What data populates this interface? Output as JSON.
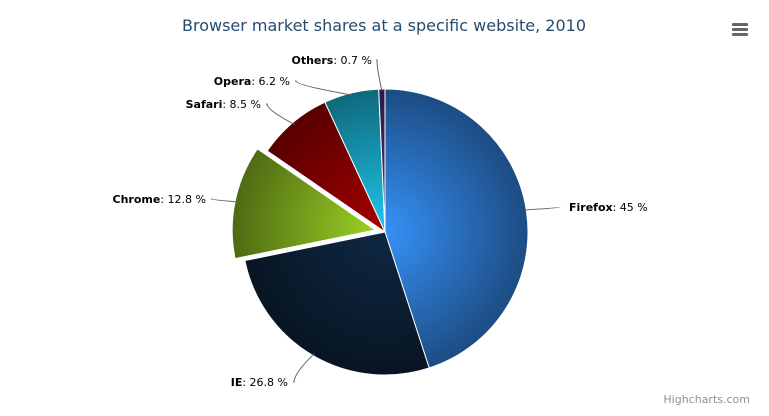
{
  "chart_data": {
    "type": "pie",
    "title": "Browser market shares at a specific website, 2010",
    "categories": [
      "Firefox",
      "IE",
      "Chrome",
      "Safari",
      "Opera",
      "Others"
    ],
    "values": [
      45.0,
      26.8,
      12.8,
      8.5,
      6.2,
      0.7
    ],
    "value_suffix": " %",
    "sliced": [
      "Chrome"
    ],
    "colors": [
      "#2f7ed8",
      "#0d233a",
      "#8bbc21",
      "#910000",
      "#1aadce",
      "#492970"
    ],
    "legend": "none"
  },
  "credits": "Highcharts.com",
  "menu_icon": "menu-icon"
}
